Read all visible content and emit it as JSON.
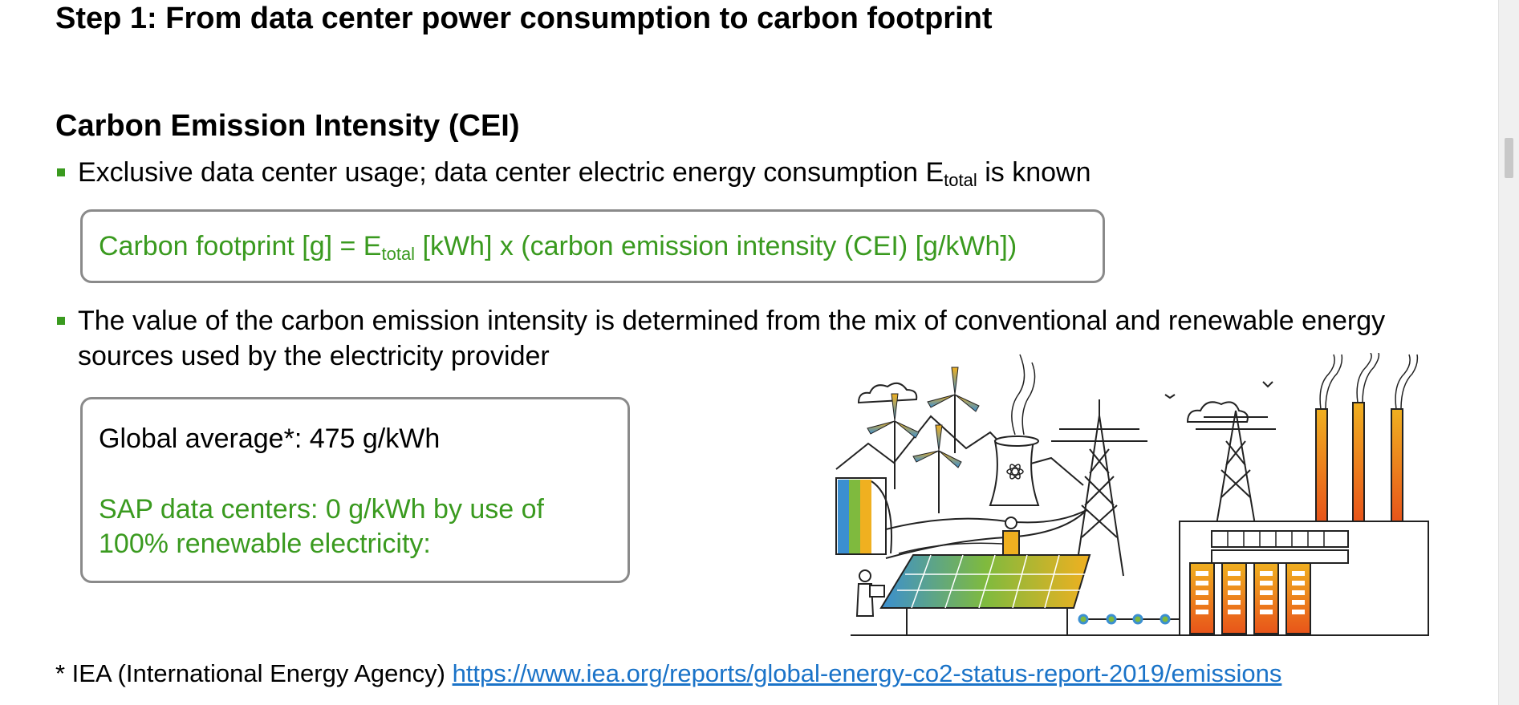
{
  "title": "Step 1: From data center power consumption to carbon footprint",
  "subtitle": "Carbon Emission Intensity (CEI)",
  "bullets": [
    {
      "text_before": "Exclusive data center usage; data center electric energy consumption E",
      "subscript": "total",
      "text_after": " is known"
    },
    {
      "line1": "The value of the carbon emission intensity is determined from the mix of conventional and renewable energy",
      "line2": "sources used by the electricity provider"
    }
  ],
  "formula": {
    "before": "Carbon footprint [g] = E",
    "subscript": "total",
    "after": " [kWh] x (carbon emission intensity (CEI) [g/kWh])"
  },
  "average_box": {
    "global": "Global average*: 475 g/kWh",
    "sap_line1": "SAP data centers: 0 g/kWh by use of",
    "sap_line2": "100% renewable electricity:"
  },
  "footnote": {
    "prefix": "* IEA (International Energy Agency) ",
    "link": "https://www.iea.org/reports/global-energy-co2-status-report-2019/emissions"
  },
  "colors": {
    "green": "#3a9a1f",
    "link": "#1a73c8",
    "box_border": "#8a8a8a"
  },
  "icons": {
    "illustration": "energy-landscape-illustration"
  }
}
